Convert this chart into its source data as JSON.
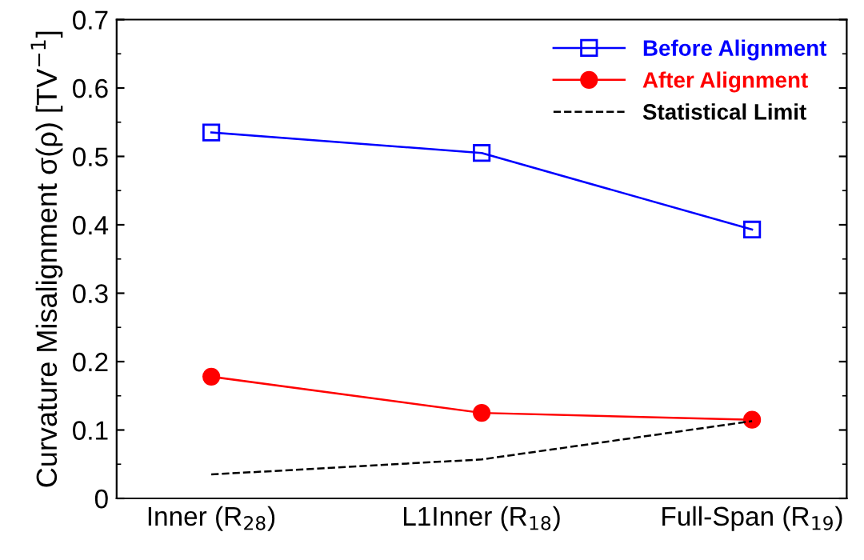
{
  "chart_data": {
    "type": "line",
    "ylabel": "Curvature Misalignment σ(ρ) [TV$^{−1}$]",
    "categories": [
      "Inner (R$_{28}$)",
      "L1Inner (R$_{18}$)",
      "Full-Span (R$_{19}$)"
    ],
    "series": [
      {
        "name": "Before Alignment",
        "color": "#0000ff",
        "values": [
          0.535,
          0.505,
          0.393
        ],
        "marker": "square",
        "line_style": "solid"
      },
      {
        "name": "After Alignment",
        "color": "#ff0000",
        "values": [
          0.178,
          0.125,
          0.115
        ],
        "marker": "circle",
        "line_style": "solid"
      },
      {
        "name": "Statistical Limit",
        "color": "#000000",
        "values": [
          0.035,
          0.057,
          0.113
        ],
        "marker": "none",
        "line_style": "dashed"
      }
    ],
    "ylim": [
      0,
      0.7
    ],
    "yticks": [
      0,
      0.1,
      0.2,
      0.3,
      0.4,
      0.5,
      0.6,
      0.7
    ],
    "grid": false,
    "legend": "top right"
  }
}
